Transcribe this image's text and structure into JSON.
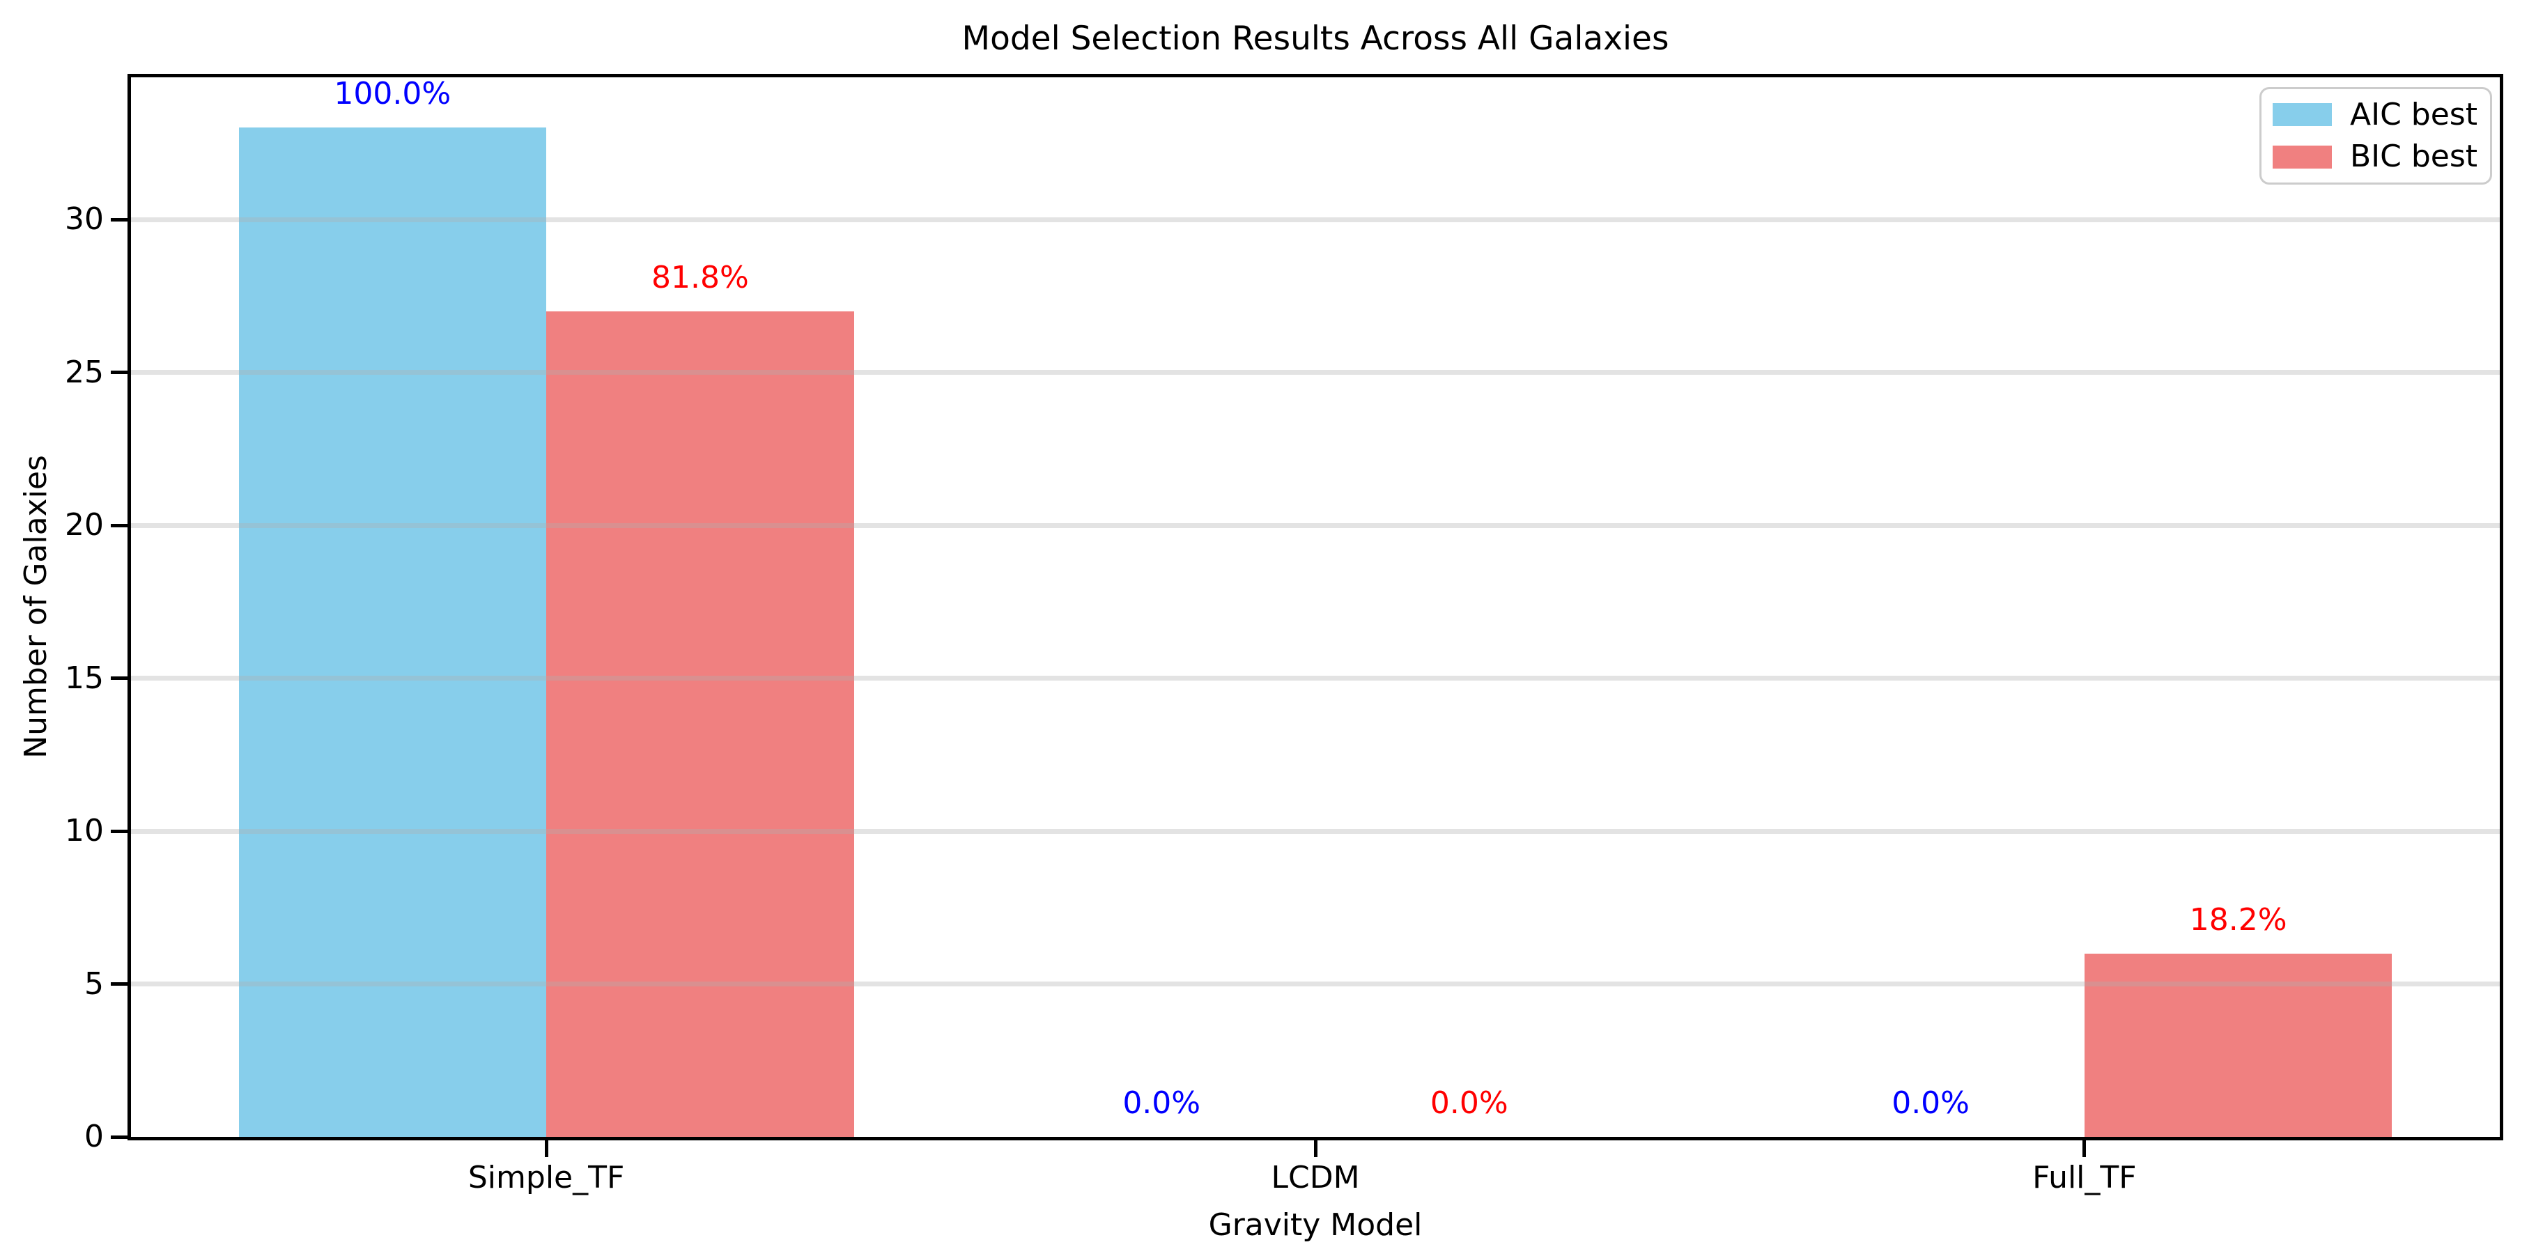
{
  "figure": {
    "background": "#FFFFFF"
  },
  "chart_data": {
    "type": "bar",
    "title": "Model Selection Results Across All Galaxies",
    "xlabel": "Gravity Model",
    "ylabel": "Number of Galaxies",
    "categories": [
      "Simple_TF",
      "LCDM",
      "Full_TF"
    ],
    "series": [
      {
        "name": "AIC best",
        "color": "#87CEEB",
        "values": [
          33,
          0,
          0
        ],
        "bar_labels": [
          "100.0%",
          "0.0%",
          "0.0%"
        ],
        "bar_label_color": "#0000FF"
      },
      {
        "name": "BIC best",
        "color": "#F08080",
        "values": [
          27,
          0,
          6
        ],
        "bar_labels": [
          "81.8%",
          "0.0%",
          "18.2%"
        ],
        "bar_label_color": "#FF0000"
      }
    ],
    "yticks": [
      0,
      5,
      10,
      15,
      20,
      25,
      30
    ],
    "ylim": [
      0,
      34.65
    ],
    "xlim": [
      -0.54,
      2.54
    ],
    "bar_width": 0.4,
    "grid": true,
    "grid_color": "#B0B0B0",
    "grid_alpha": 0.35,
    "spine_color": "#000000",
    "legend_position": "upper right"
  }
}
